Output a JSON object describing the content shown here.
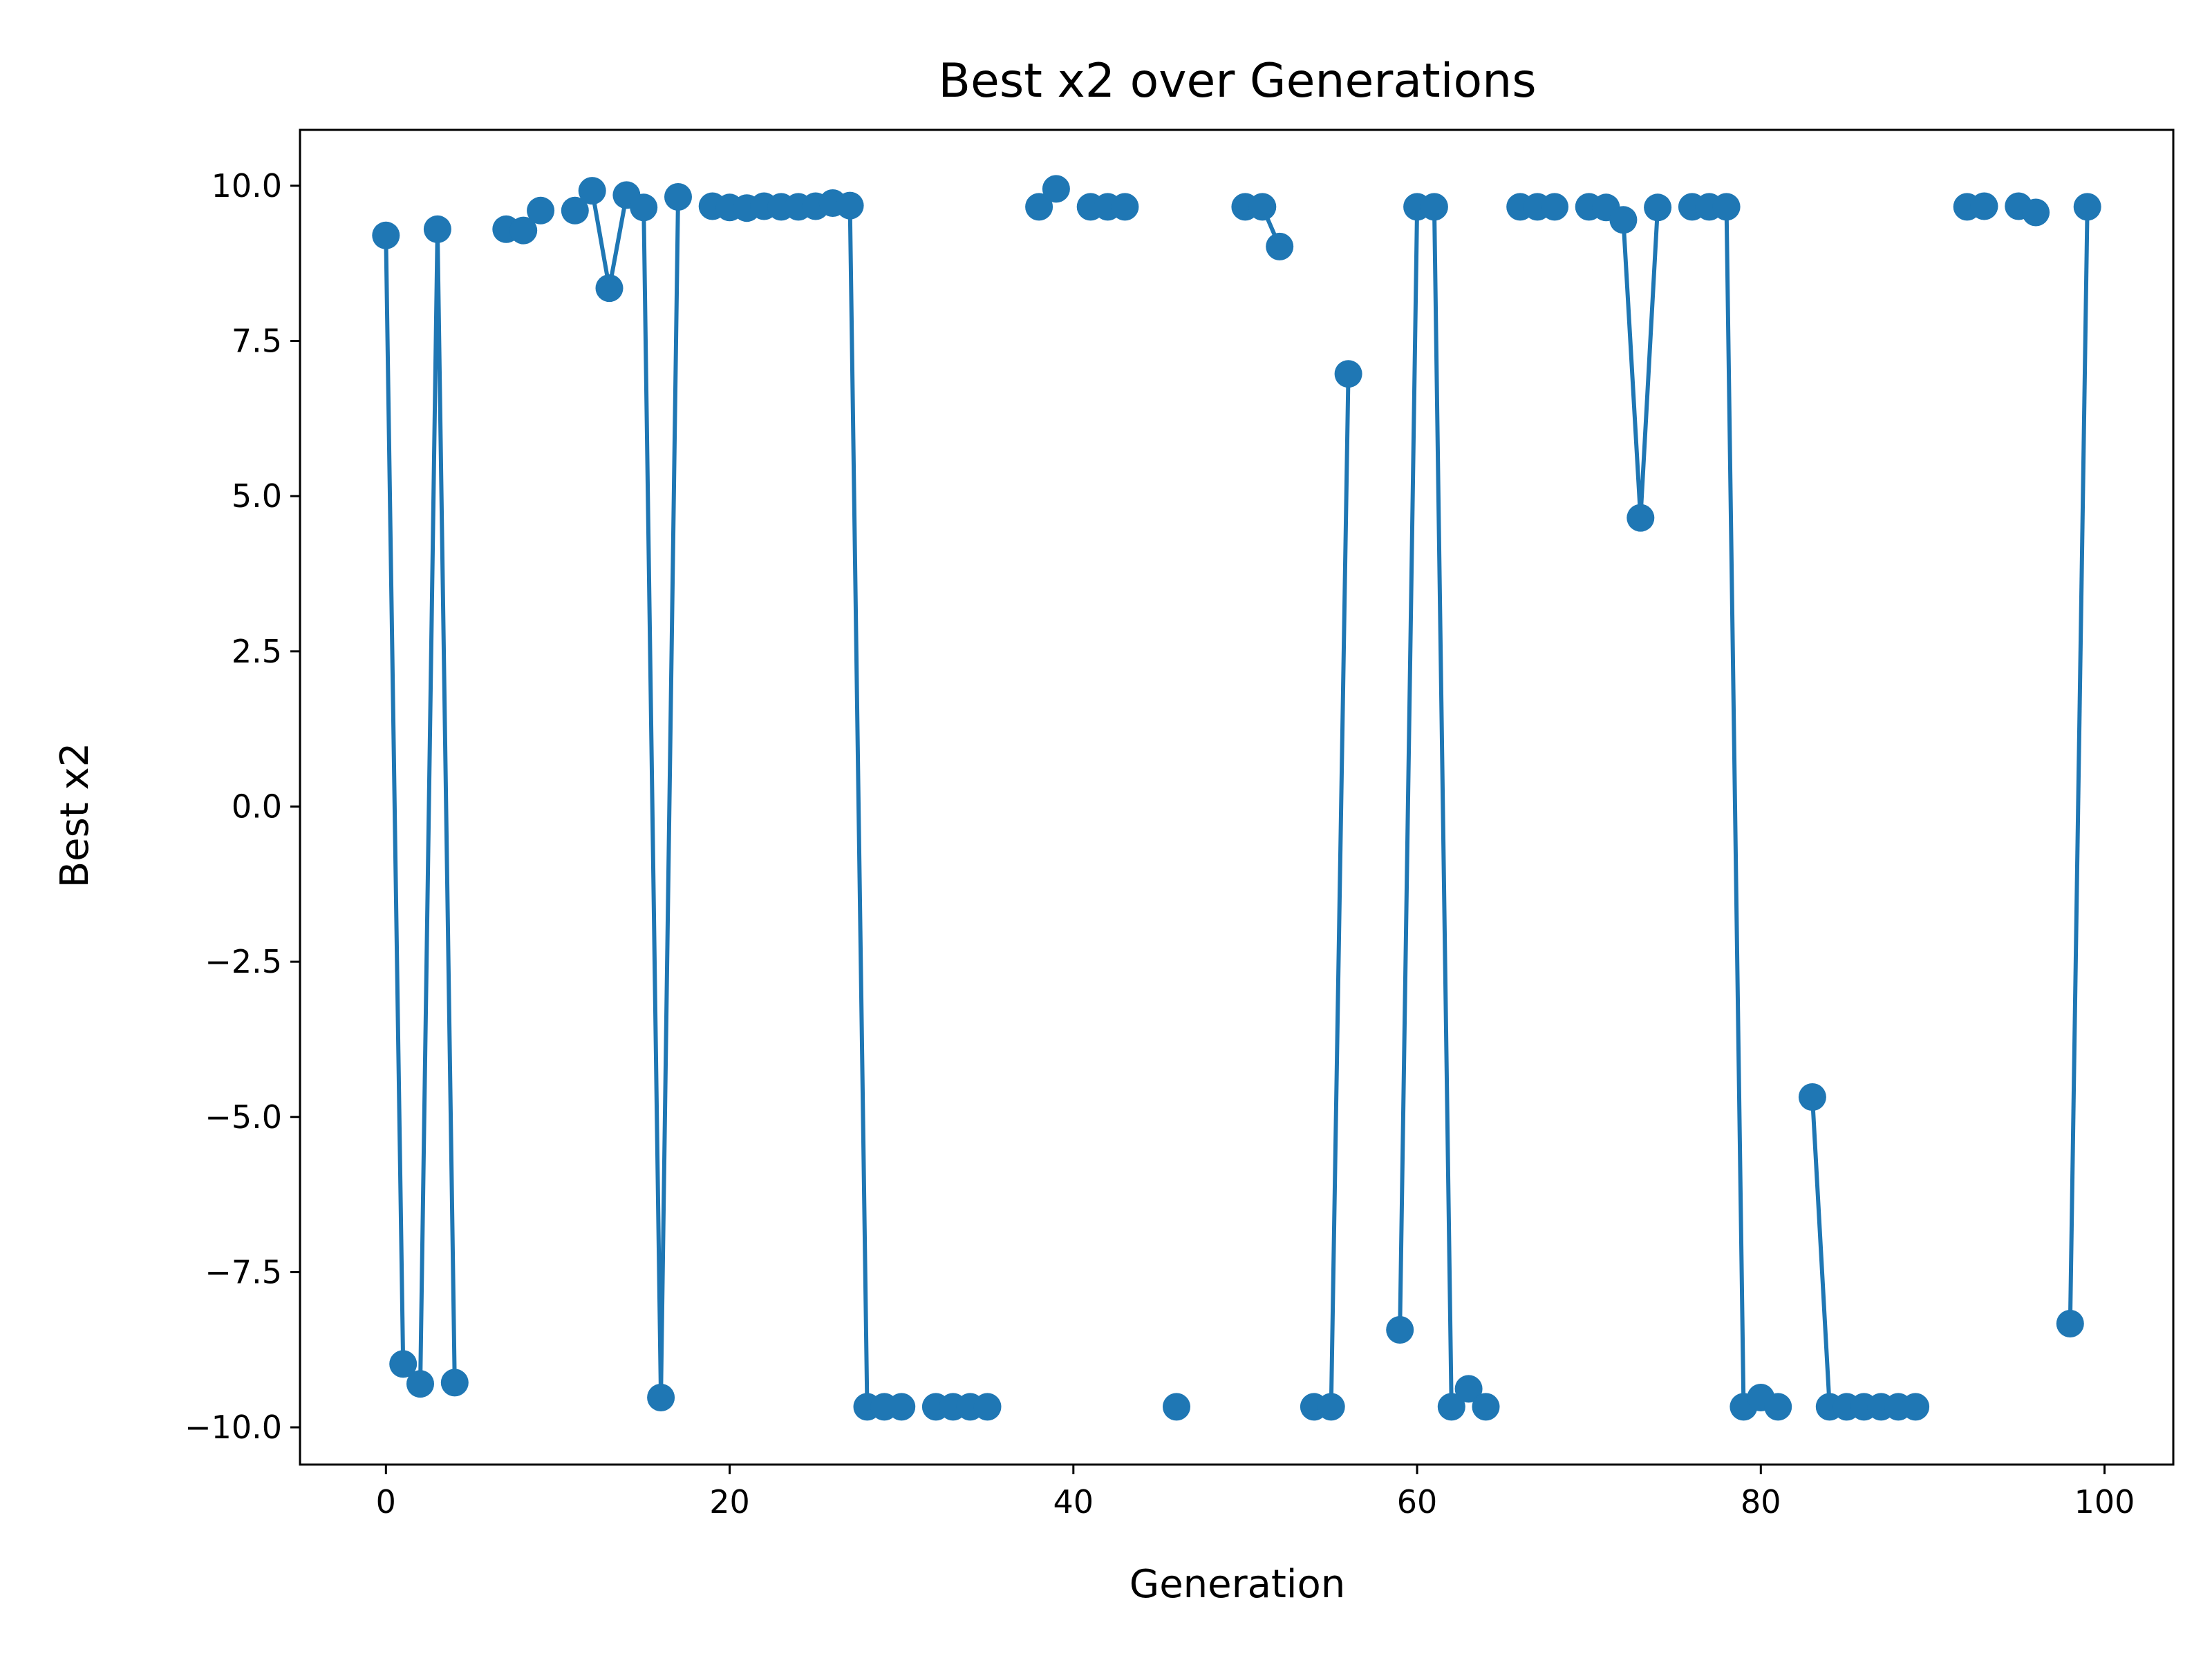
{
  "chart_data": {
    "type": "line",
    "title": "Best x2 over Generations",
    "xlabel": "Generation",
    "ylabel": "Best x2",
    "xlim": [
      -5,
      104
    ],
    "ylim": [
      -10.6,
      10.9
    ],
    "x_ticks": [
      0,
      20,
      40,
      60,
      80,
      100
    ],
    "x_tick_labels": [
      "0",
      "20",
      "40",
      "60",
      "80",
      "100"
    ],
    "y_ticks": [
      10.0,
      7.5,
      5.0,
      2.5,
      0.0,
      -2.5,
      -5.0,
      -7.5,
      -10.0
    ],
    "y_tick_labels": [
      "10.0",
      "7.5",
      "5.0",
      "2.5",
      "0.0",
      "−2.5",
      "−5.0",
      "−7.5",
      "−10.0"
    ],
    "grid": false,
    "color": "#1f77b4",
    "series": [
      {
        "x": [
          0,
          1,
          2,
          3,
          4,
          5,
          6,
          7,
          8,
          9,
          10,
          11,
          12,
          13,
          14,
          15,
          16,
          17,
          18,
          19,
          20,
          21,
          22,
          23,
          24,
          25,
          26,
          27,
          28,
          29,
          30,
          31,
          32,
          33,
          34,
          35,
          36,
          37,
          38,
          39,
          40,
          41,
          42,
          43,
          44,
          45,
          46,
          47,
          48,
          49,
          50,
          51,
          52,
          53,
          54,
          55,
          56,
          57,
          58,
          59,
          60,
          61,
          62,
          63,
          64,
          65,
          66,
          67,
          68,
          69,
          70,
          71,
          72,
          73,
          74,
          75,
          76,
          77,
          78,
          79,
          80,
          81,
          82,
          83,
          84,
          85,
          86,
          87,
          88,
          89,
          90,
          91,
          92,
          93,
          94,
          95,
          96,
          97,
          98,
          99
        ],
        "y": [
          9.2,
          -8.98,
          -9.3,
          9.3,
          -9.28,
          null,
          null,
          9.3,
          9.28,
          9.6,
          null,
          9.6,
          9.92,
          8.35,
          9.85,
          9.65,
          -9.52,
          9.82,
          null,
          9.67,
          9.65,
          9.64,
          9.67,
          9.66,
          9.66,
          9.67,
          9.72,
          9.68,
          -9.67,
          -9.67,
          -9.67,
          null,
          -9.67,
          -9.67,
          -9.67,
          -9.67,
          null,
          null,
          9.66,
          9.95,
          null,
          9.66,
          9.66,
          9.66,
          null,
          null,
          -9.67,
          null,
          null,
          null,
          9.66,
          9.66,
          9.02,
          null,
          -9.67,
          -9.67,
          6.97,
          null,
          null,
          -8.43,
          9.66,
          9.66,
          -9.67,
          -9.38,
          -9.67,
          null,
          9.66,
          9.66,
          9.66,
          null,
          9.66,
          9.65,
          9.45,
          4.65,
          9.65,
          null,
          9.66,
          9.66,
          9.66,
          -9.67,
          -9.52,
          -9.67,
          null,
          -4.68,
          -9.67,
          -9.67,
          -9.67,
          -9.67,
          -9.67,
          -9.67,
          null,
          null,
          9.66,
          9.67,
          null,
          9.67,
          9.57,
          null,
          -8.33,
          9.66
        ]
      }
    ]
  }
}
